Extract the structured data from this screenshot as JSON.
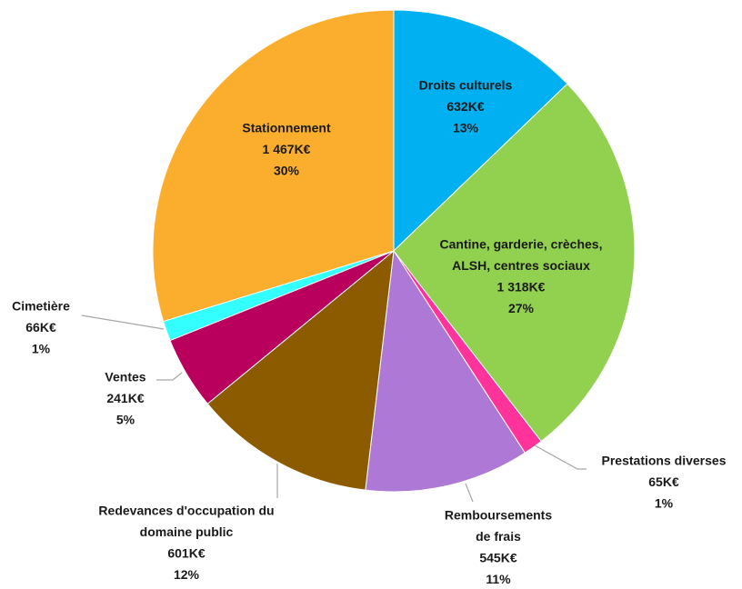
{
  "chart_data": {
    "type": "pie",
    "categories": [
      [
        "Droits culturels"
      ],
      [
        "Cantine, garderie, crèches,",
        "ALSH, centres sociaux"
      ],
      [
        "Prestations diverses"
      ],
      [
        "Remboursements",
        "de frais"
      ],
      [
        "Redevances d'occupation du",
        "domaine public"
      ],
      [
        "Ventes"
      ],
      [
        "Cimetière"
      ],
      [
        "Stationnement"
      ]
    ],
    "values": [
      632,
      1318,
      65,
      545,
      601,
      241,
      66,
      1467
    ],
    "value_labels": [
      "632K€",
      "1 318K€",
      "65K€",
      "545K€",
      "601K€",
      "241K€",
      "66K€",
      "1 467K€"
    ],
    "percent_labels": [
      "13%",
      "27%",
      "1%",
      "11%",
      "12%",
      "5%",
      "1%",
      "30%"
    ],
    "colors": [
      "#00b0f0",
      "#92d050",
      "#ff3399",
      "#ad78d6",
      "#8c5b00",
      "#b8005c",
      "#33ffff",
      "#fbae2e"
    ]
  }
}
